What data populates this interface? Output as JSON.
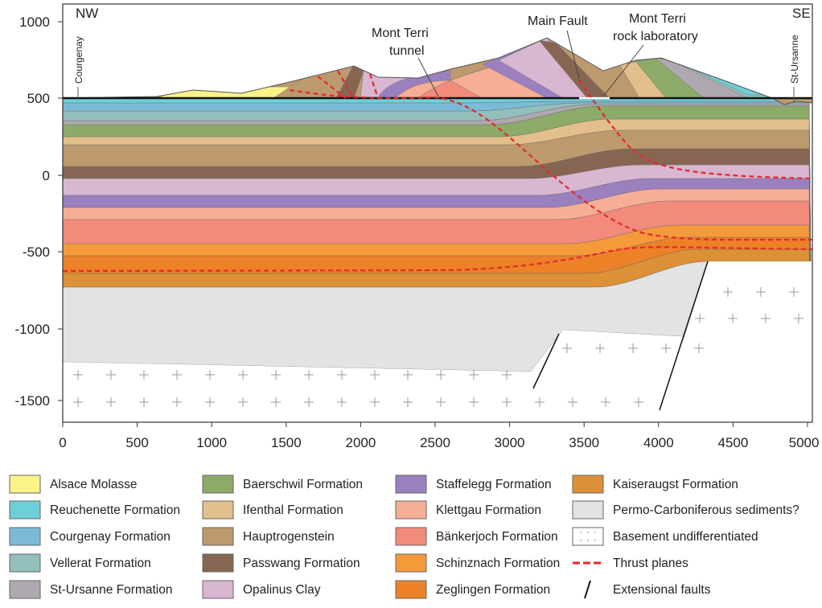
{
  "orientation": {
    "left": "NW",
    "right": "SE"
  },
  "places": {
    "left": "Courgenay",
    "right": "St-Ursanne"
  },
  "annotations": {
    "tunnel_line1": "Mont Terri",
    "tunnel_line2": "tunnel",
    "main_fault": "Main Fault",
    "lab_line1": "Mont Terri",
    "lab_line2": "rock laboratory"
  },
  "y_axis": {
    "ticks": [
      "1000",
      "500",
      "0",
      "-500",
      "-1000",
      "-1500"
    ]
  },
  "x_axis": {
    "ticks": [
      "0",
      "500",
      "1000",
      "1500",
      "2000",
      "2500",
      "3000",
      "3500",
      "4000",
      "4500",
      "5000 m"
    ]
  },
  "legend": [
    {
      "label": "Alsace Molasse",
      "color": "#fbf28a"
    },
    {
      "label": "Reuchenette Formation",
      "color": "#6fcfd8"
    },
    {
      "label": "Courgenay Formation",
      "color": "#7cbbd8"
    },
    {
      "label": "Vellerat Formation",
      "color": "#93bfbd"
    },
    {
      "label": "St-Ursanne Formation",
      "color": "#b0a8b0"
    },
    {
      "label": "Baerschwil Formation",
      "color": "#8caa68"
    },
    {
      "label": "Ifenthal Formation",
      "color": "#e2bf8c"
    },
    {
      "label": "Hauptrogenstein",
      "color": "#bd9a6d"
    },
    {
      "label": "Passwang Formation",
      "color": "#866653"
    },
    {
      "label": "Opalinus Clay",
      "color": "#d9b6d2"
    },
    {
      "label": "Staffelegg Formation",
      "color": "#9a80bf"
    },
    {
      "label": "Klettgau Formation",
      "color": "#f7ae96"
    },
    {
      "label": "Bänkerjoch Formation",
      "color": "#f28b7c"
    },
    {
      "label": "Schinznach Formation",
      "color": "#f59a3a"
    },
    {
      "label": "Zeglingen Formation",
      "color": "#ec8128"
    },
    {
      "label": "Kaiseraugst Formation",
      "color": "#dc9136"
    },
    {
      "label": "Permo-Carboniferous sediments?",
      "color": "#e2e3e3"
    },
    {
      "label": "Basement undifferentiated",
      "color": "#ffffff"
    },
    {
      "label": "Thrust planes",
      "color": "#e8262a"
    },
    {
      "label": "Extensional faults",
      "color": "#111111"
    }
  ]
}
